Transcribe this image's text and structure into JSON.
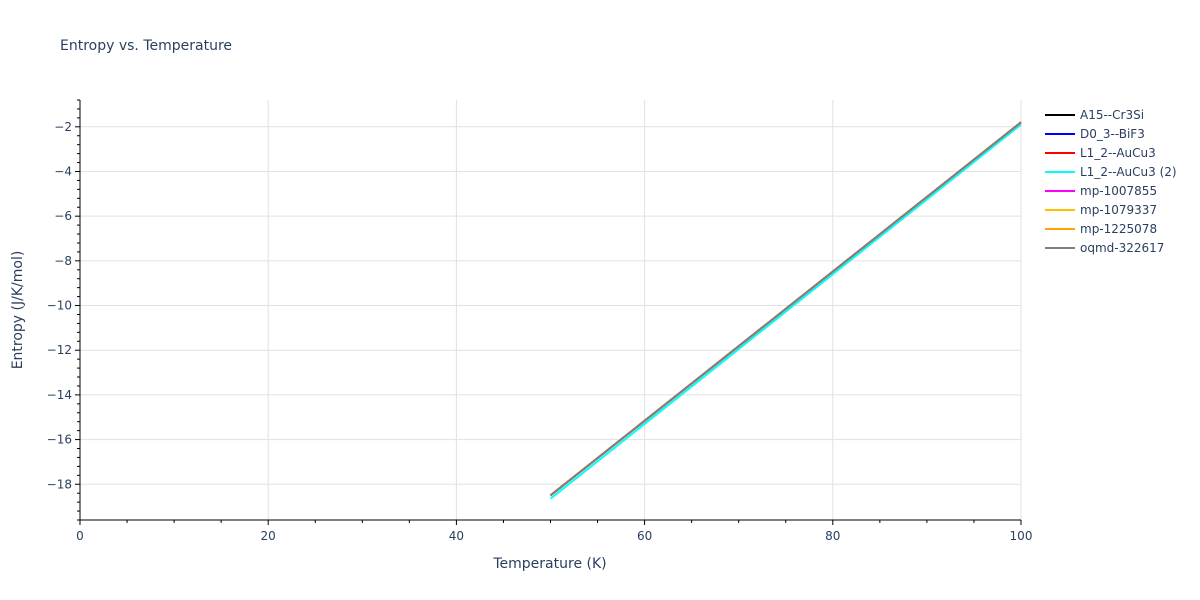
{
  "chart_data": {
    "type": "line",
    "title": "Entropy vs. Temperature",
    "xlabel": "Temperature (K)",
    "ylabel": "Entropy (J/K/mol)",
    "xlim": [
      0,
      100
    ],
    "ylim": [
      -19.6,
      -0.8
    ],
    "x_ticks": [
      0,
      20,
      40,
      60,
      80,
      100
    ],
    "x_tick_labels": [
      "0",
      "20",
      "40",
      "60",
      "80",
      "100"
    ],
    "y_ticks": [
      -18,
      -16,
      -14,
      -12,
      -10,
      -8,
      -6,
      -4,
      -2
    ],
    "y_tick_labels": [
      "−18",
      "−16",
      "−14",
      "−12",
      "−10",
      "−8",
      "−6",
      "−4",
      "−2"
    ],
    "grid": true,
    "legend_position": "right",
    "series": [
      {
        "name": "A15--Cr3Si",
        "color": "#000000",
        "x": [
          50,
          100
        ],
        "y": [
          -18.5,
          -1.8
        ]
      },
      {
        "name": "D0_3--BiF3",
        "color": "#0000ff",
        "x": [
          50,
          100
        ],
        "y": [
          -18.5,
          -1.8
        ]
      },
      {
        "name": "L1_2--AuCu3",
        "color": "#ff0000",
        "x": [
          50,
          100
        ],
        "y": [
          -18.5,
          -1.8
        ]
      },
      {
        "name": "L1_2--AuCu3 (2)",
        "color": "#00ffff",
        "x": [
          50,
          100
        ],
        "y": [
          -18.65,
          -1.9
        ]
      },
      {
        "name": "mp-1007855",
        "color": "#ff00ff",
        "x": [
          50,
          100
        ],
        "y": [
          -18.5,
          -1.8
        ]
      },
      {
        "name": "mp-1079337",
        "color": "#ffbf00",
        "x": [
          50,
          100
        ],
        "y": [
          -18.5,
          -1.8
        ]
      },
      {
        "name": "mp-1225078",
        "color": "#ffa500",
        "x": [
          50,
          100
        ],
        "y": [
          -18.5,
          -1.8
        ]
      },
      {
        "name": "oqmd-322617",
        "color": "#808080",
        "x": [
          50,
          100
        ],
        "y": [
          -18.5,
          -1.8
        ]
      }
    ]
  }
}
